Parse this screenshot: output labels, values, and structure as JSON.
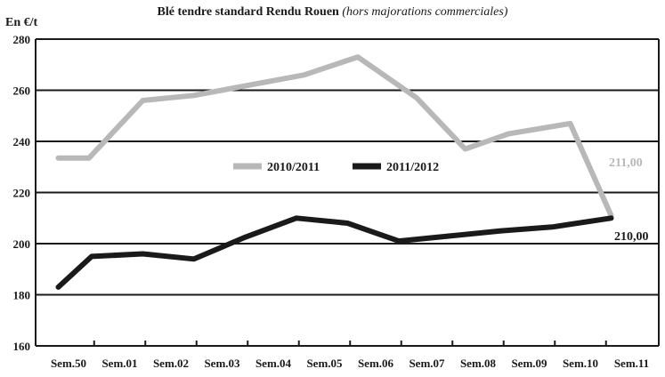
{
  "chart_data": {
    "type": "line",
    "title": "Blé tendre standard Rendu Rouen",
    "subtitle": "(hors majorations commerciales)",
    "ylabel": "En €/t",
    "xlabel": "",
    "categories": [
      "Sem.50",
      "Sem.01",
      "Sem.02",
      "Sem.03",
      "Sem.04",
      "Sem.05",
      "Sem.06",
      "Sem.07",
      "Sem.08",
      "Sem.09",
      "Sem.10",
      "Sem.11"
    ],
    "ylim": [
      160,
      280
    ],
    "yticks": [
      160,
      180,
      200,
      220,
      240,
      260,
      280
    ],
    "grid": true,
    "legend_placement": "center",
    "series": [
      {
        "name": "2010/2011",
        "color": "#b8b8b8",
        "x": [
          -0.2,
          0.4,
          1.45,
          2.45,
          4.6,
          5.65,
          6.8,
          7.75,
          8.6,
          9.8,
          10.6
        ],
        "y": [
          233.5,
          233.5,
          256,
          258,
          266,
          273,
          257,
          237,
          243,
          247,
          211
        ],
        "end_label": "211,00"
      },
      {
        "name": "2011/2012",
        "color": "#1a1a1a",
        "x": [
          -0.2,
          0.45,
          1.45,
          2.45,
          3.45,
          4.45,
          5.45,
          6.45,
          7.45,
          8.45,
          9.45,
          10.6
        ],
        "y": [
          183,
          195,
          196,
          194,
          202.5,
          210,
          208,
          201,
          203,
          205,
          206.5,
          210
        ],
        "end_label": "210,00"
      }
    ]
  }
}
